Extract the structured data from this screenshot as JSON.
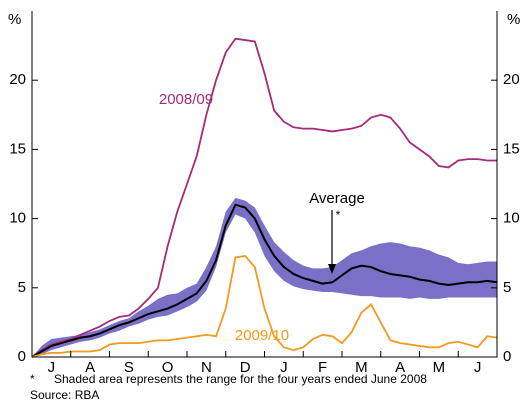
{
  "chart_data": {
    "type": "line",
    "y_unit_left": "%",
    "y_unit_right": "%",
    "categories": [
      "J",
      "A",
      "S",
      "O",
      "N",
      "D",
      "J",
      "F",
      "M",
      "A",
      "M",
      "J"
    ],
    "xlim": [
      0,
      12
    ],
    "xticks": [
      0,
      1,
      2,
      3,
      4,
      5,
      6,
      7,
      8,
      9,
      10,
      11,
      12
    ],
    "ylim": [
      0,
      25
    ],
    "yticks": [
      0,
      5,
      10,
      15,
      20
    ],
    "x": [
      0,
      0.25,
      0.5,
      0.75,
      1,
      1.25,
      1.5,
      1.75,
      2,
      2.25,
      2.5,
      2.75,
      3,
      3.25,
      3.5,
      3.75,
      4,
      4.25,
      4.5,
      4.75,
      5,
      5.25,
      5.5,
      5.75,
      6,
      6.25,
      6.5,
      6.75,
      7,
      7.25,
      7.5,
      7.75,
      8,
      8.25,
      8.5,
      8.75,
      9,
      9.25,
      9.5,
      9.75,
      10,
      10.25,
      10.5,
      10.75,
      11,
      11.25,
      11.5,
      11.75,
      12
    ],
    "band": {
      "color": "#7b70c8",
      "upper": [
        0,
        0.8,
        1.3,
        1.4,
        1.5,
        1.6,
        1.8,
        2.0,
        2.3,
        2.6,
        2.8,
        3.3,
        3.7,
        4.2,
        4.5,
        4.6,
        5.0,
        5.3,
        6.5,
        8.0,
        10.5,
        11.5,
        11.3,
        10.8,
        9.5,
        8.3,
        7.6,
        7.0,
        6.6,
        6.4,
        6.4,
        6.5,
        7.0,
        7.5,
        7.7,
        8.0,
        8.2,
        8.3,
        8.2,
        8.0,
        7.9,
        7.7,
        7.4,
        7.2,
        6.8,
        6.7,
        6.8,
        6.9,
        6.9
      ],
      "lower": [
        0,
        0.2,
        0.5,
        0.7,
        0.9,
        1.1,
        1.2,
        1.4,
        1.7,
        1.9,
        2.2,
        2.4,
        2.7,
        2.9,
        3.0,
        3.3,
        3.6,
        4.0,
        4.8,
        6.5,
        9.0,
        10.3,
        10.0,
        9.0,
        7.3,
        6.2,
        5.5,
        5.1,
        4.9,
        4.8,
        4.7,
        4.7,
        4.6,
        4.5,
        4.4,
        4.4,
        4.3,
        4.3,
        4.3,
        4.2,
        4.3,
        4.2,
        4.2,
        4.3,
        4.3,
        4.3,
        4.3,
        4.3,
        4.3
      ]
    },
    "series": [
      {
        "name": "2008/09",
        "color": "#a6297a",
        "values": [
          0,
          0.5,
          0.9,
          1.1,
          1.3,
          1.6,
          1.9,
          2.2,
          2.6,
          2.9,
          3.0,
          3.5,
          4.2,
          5.0,
          8.0,
          10.5,
          12.5,
          14.5,
          17.5,
          20.0,
          22.0,
          23.0,
          22.9,
          22.8,
          20.5,
          17.8,
          17.0,
          16.6,
          16.5,
          16.5,
          16.4,
          16.3,
          16.4,
          16.5,
          16.7,
          17.3,
          17.5,
          17.3,
          16.5,
          15.5,
          15.0,
          14.5,
          13.8,
          13.7,
          14.2,
          14.3,
          14.3,
          14.2,
          14.2
        ]
      },
      {
        "name": "Average",
        "color": "#000000",
        "values": [
          0,
          0.4,
          0.8,
          1.0,
          1.2,
          1.4,
          1.5,
          1.7,
          2.0,
          2.3,
          2.5,
          2.8,
          3.1,
          3.3,
          3.5,
          3.8,
          4.2,
          4.6,
          5.5,
          7.0,
          9.5,
          11.0,
          10.8,
          10.0,
          8.5,
          7.3,
          6.5,
          6.0,
          5.7,
          5.5,
          5.3,
          5.4,
          5.9,
          6.4,
          6.6,
          6.5,
          6.2,
          6.0,
          5.9,
          5.8,
          5.6,
          5.5,
          5.3,
          5.2,
          5.3,
          5.4,
          5.4,
          5.5,
          5.4
        ]
      },
      {
        "name": "2009/10",
        "color": "#f39a1e",
        "values": [
          0,
          0.2,
          0.3,
          0.3,
          0.4,
          0.4,
          0.4,
          0.5,
          0.9,
          1.0,
          1.0,
          1.0,
          1.1,
          1.2,
          1.2,
          1.3,
          1.4,
          1.5,
          1.6,
          1.5,
          3.5,
          7.2,
          7.3,
          6.5,
          3.5,
          1.5,
          0.7,
          0.5,
          0.7,
          1.3,
          1.6,
          1.5,
          1.0,
          1.8,
          3.2,
          3.8,
          2.5,
          1.2,
          1.0,
          0.9,
          0.8,
          0.7,
          0.7,
          1.0,
          1.1,
          0.9,
          0.7,
          1.5,
          1.4
        ]
      }
    ],
    "annotation_star": "*",
    "footnote_star": "*",
    "footnote": "Shaded area represents the range for the four years ended June 2008",
    "source": "Source: RBA"
  }
}
